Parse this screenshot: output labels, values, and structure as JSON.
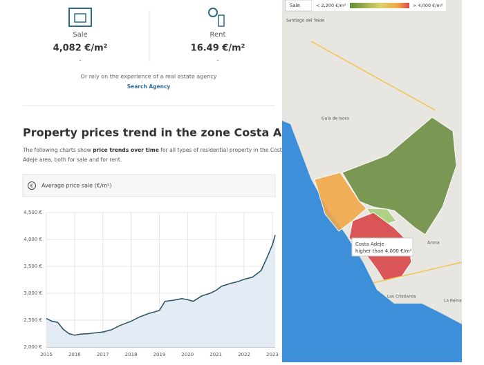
{
  "stats": [
    {
      "label": "Sale",
      "value": "4,082 €/m²",
      "change": "-"
    },
    {
      "label": "Rent",
      "value": "16.49 €/m²",
      "change": "-"
    }
  ],
  "agency": {
    "text": "Or rely on the experience of a real estate agency",
    "link": "Search Agency"
  },
  "section": {
    "title": "Property prices trend in the zone Costa Adeje",
    "intro_before": "The following charts show ",
    "intro_bold": "price trends over time",
    "intro_line1_after": " for all types of residential property in the Costa",
    "intro_line2": "Adeje area, both for sale and for rent.",
    "box_icon": "€",
    "box_label": "Average price sale (€/m²)"
  },
  "chart_data": {
    "type": "line",
    "x": [
      2015.0,
      2015.2,
      2015.4,
      2015.6,
      2015.8,
      2016.0,
      2016.2,
      2016.5,
      2017.0,
      2017.3,
      2017.6,
      2018.0,
      2018.3,
      2018.6,
      2019.0,
      2019.2,
      2019.5,
      2019.8,
      2020.0,
      2020.2,
      2020.5,
      2020.8,
      2021.0,
      2021.2,
      2021.5,
      2021.8,
      2022.0,
      2022.3,
      2022.6,
      2022.8,
      2023.0,
      2023.1
    ],
    "series": [
      {
        "name": "Average price sale",
        "color": "#2e5566",
        "fill": "#e3ebf5",
        "values": [
          2530,
          2480,
          2460,
          2330,
          2250,
          2220,
          2240,
          2250,
          2280,
          2320,
          2400,
          2480,
          2560,
          2620,
          2680,
          2850,
          2870,
          2900,
          2880,
          2850,
          2950,
          3000,
          3050,
          3130,
          3180,
          3220,
          3260,
          3300,
          3420,
          3650,
          3900,
          4082
        ]
      }
    ],
    "xlim": [
      2015,
      2023.1
    ],
    "xticks": [
      2015,
      2016,
      2017,
      2018,
      2019,
      2020,
      2021,
      2022,
      2023
    ],
    "ylim": [
      2000,
      4500
    ],
    "yticks": [
      {
        "value": 2000,
        "label": "2,000 €"
      },
      {
        "value": 2500,
        "label": "2,500 €"
      },
      {
        "value": 3000,
        "label": "3,000 €"
      },
      {
        "value": 3500,
        "label": "3,500 €"
      },
      {
        "value": 4000,
        "label": "4,000 €"
      },
      {
        "value": 4500,
        "label": "4,500 €"
      }
    ],
    "grid": true
  },
  "map": {
    "mode": "Sale",
    "legend_low": "< 2,200 €/m²",
    "legend_high": "> 4,000 €/m²",
    "places": [
      "Santiago del Teide",
      "Guía de Isora",
      "Arona",
      "Los Cristianos",
      "La Reina"
    ],
    "tooltip_title": "Costa Adeje",
    "tooltip_text": "higher than 4,000 €/m²"
  }
}
